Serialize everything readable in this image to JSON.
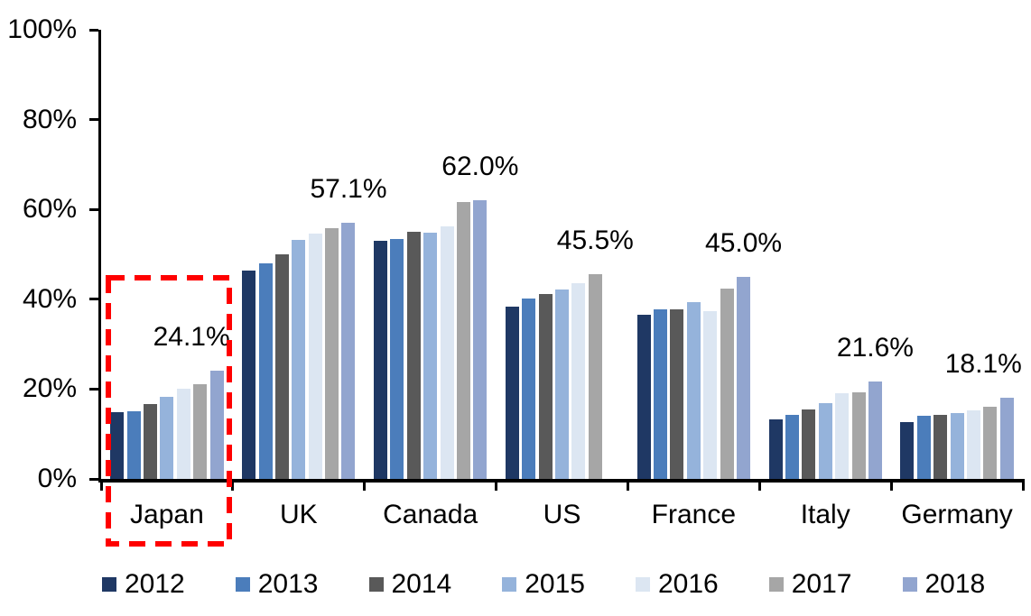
{
  "chart_data": {
    "type": "bar",
    "title": "",
    "xlabel": "",
    "ylabel": "",
    "categories": [
      "Japan",
      "UK",
      "Canada",
      "US",
      "France",
      "Italy",
      "Germany"
    ],
    "series": [
      {
        "name": "2012",
        "color": "#1F3864",
        "values": [
          14.9,
          46.3,
          53.0,
          38.3,
          36.5,
          13.3,
          12.6
        ]
      },
      {
        "name": "2013",
        "color": "#4B7DBB",
        "values": [
          15.0,
          47.9,
          53.5,
          40.2,
          37.8,
          14.2,
          14.0
        ]
      },
      {
        "name": "2014",
        "color": "#595959",
        "values": [
          16.7,
          50.0,
          55.0,
          41.2,
          37.7,
          15.4,
          14.3
        ]
      },
      {
        "name": "2015",
        "color": "#95B3DB",
        "values": [
          18.2,
          53.2,
          54.8,
          42.2,
          39.3,
          16.9,
          14.6
        ]
      },
      {
        "name": "2016",
        "color": "#DCE6F2",
        "values": [
          20.0,
          54.7,
          56.3,
          43.6,
          37.4,
          19.1,
          15.3
        ]
      },
      {
        "name": "2017",
        "color": "#A6A6A6",
        "values": [
          21.1,
          55.9,
          61.6,
          45.5,
          42.3,
          19.3,
          16.0
        ]
      },
      {
        "name": "2018",
        "color": "#92A5CF",
        "values": [
          24.1,
          57.1,
          62.0,
          null,
          45.0,
          21.6,
          18.1
        ]
      }
    ],
    "value_labels": [
      "24.1%",
      "57.1%",
      "62.0%",
      "45.5%",
      "45.0%",
      "21.6%",
      "18.1%"
    ],
    "y_axis": {
      "min": 0,
      "max": 100,
      "tick_values": [
        0,
        20,
        40,
        60,
        80,
        100
      ],
      "tick_labels": [
        "0%",
        "20%",
        "40%",
        "60%",
        "80%",
        "100%"
      ]
    },
    "grid": false,
    "legend_position": "bottom",
    "legend_labels": [
      "2012",
      "2013",
      "2014",
      "2015",
      "2016",
      "2017",
      "2018"
    ],
    "highlight": {
      "category": "Japan",
      "shape": "dashed-rectangle",
      "color": "#FF0000"
    }
  }
}
